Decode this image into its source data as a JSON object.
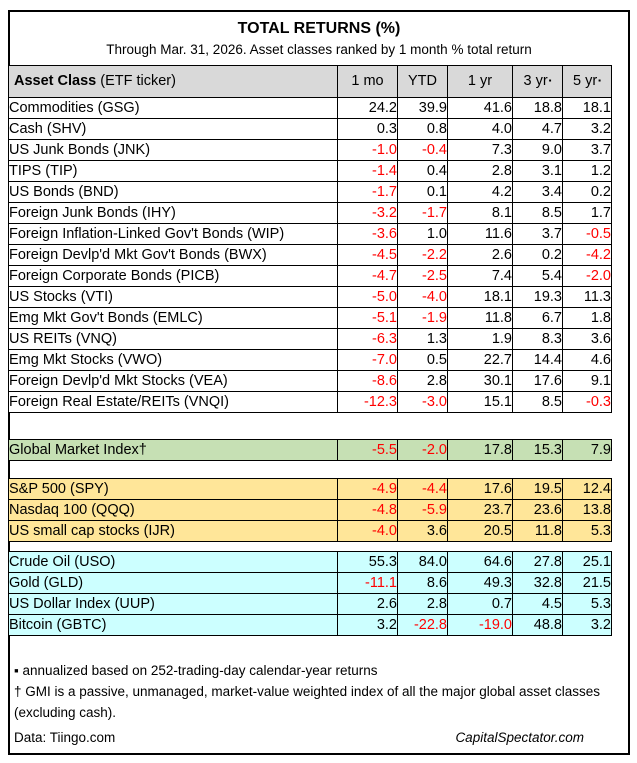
{
  "colors": {
    "header_bg": "#D9D9D9",
    "gmi_bg": "#C6E0B4",
    "benchmark_bg": "#FFE699",
    "alternatives_bg": "#CCFFFF",
    "negative": "#FF0000",
    "border": "#000000"
  },
  "chart_data": {
    "type": "table",
    "title": "TOTAL RETURNS (%)",
    "subtitle": "Through Mar. 31, 2026. Asset classes ranked by 1 month % total return",
    "header": {
      "asset_col_bold": "Asset Class",
      "asset_col_regular": " (ETF ticker)",
      "value_cols": [
        {
          "label": "1 mo",
          "marker": ""
        },
        {
          "label": "YTD",
          "marker": ""
        },
        {
          "label": "1 yr",
          "marker": ""
        },
        {
          "label": "3 yr",
          "marker": "▪"
        },
        {
          "label": "5 yr",
          "marker": "▪"
        }
      ]
    },
    "sections": [
      {
        "id": "asset-classes",
        "bg": "#FFFFFF",
        "rows": [
          {
            "label": "Commodities (GSG)",
            "values": [
              "24.2",
              "39.9",
              "41.6",
              "18.8",
              "18.1"
            ]
          },
          {
            "label": "Cash (SHV)",
            "values": [
              "0.3",
              "0.8",
              "4.0",
              "4.7",
              "3.2"
            ]
          },
          {
            "label": "US Junk Bonds (JNK)",
            "values": [
              "-1.0",
              "-0.4",
              "7.3",
              "9.0",
              "3.7"
            ]
          },
          {
            "label": "TIPS (TIP)",
            "values": [
              "-1.4",
              "0.4",
              "2.8",
              "3.1",
              "1.2"
            ]
          },
          {
            "label": "US Bonds (BND)",
            "values": [
              "-1.7",
              "0.1",
              "4.2",
              "3.4",
              "0.2"
            ]
          },
          {
            "label": "Foreign Junk Bonds (IHY)",
            "values": [
              "-3.2",
              "-1.7",
              "8.1",
              "8.5",
              "1.7"
            ]
          },
          {
            "label": "Foreign Inflation-Linked Gov't Bonds (WIP)",
            "values": [
              "-3.6",
              "1.0",
              "11.6",
              "3.7",
              "-0.5"
            ]
          },
          {
            "label": "Foreign Devlp'd Mkt Gov't Bonds (BWX)",
            "values": [
              "-4.5",
              "-2.2",
              "2.6",
              "0.2",
              "-4.2"
            ]
          },
          {
            "label": "Foreign Corporate Bonds (PICB)",
            "values": [
              "-4.7",
              "-2.5",
              "7.4",
              "5.4",
              "-2.0"
            ]
          },
          {
            "label": "US Stocks (VTI)",
            "values": [
              "-5.0",
              "-4.0",
              "18.1",
              "19.3",
              "11.3"
            ]
          },
          {
            "label": "Emg Mkt Gov't Bonds (EMLC)",
            "values": [
              "-5.1",
              "-1.9",
              "11.8",
              "6.7",
              "1.8"
            ]
          },
          {
            "label": "US REITs (VNQ)",
            "values": [
              "-6.3",
              "1.3",
              "1.9",
              "8.3",
              "3.6"
            ]
          },
          {
            "label": "Emg Mkt Stocks (VWO)",
            "values": [
              "-7.0",
              "0.5",
              "22.7",
              "14.4",
              "4.6"
            ]
          },
          {
            "label": "Foreign Devlp'd Mkt Stocks (VEA)",
            "values": [
              "-8.6",
              "2.8",
              "30.1",
              "17.6",
              "9.1"
            ]
          },
          {
            "label": "Foreign Real Estate/REITs (VNQI)",
            "values": [
              "-12.3",
              "-3.0",
              "15.1",
              "8.5",
              "-0.3"
            ]
          }
        ]
      },
      {
        "id": "global-market-index",
        "bg": "#C6E0B4",
        "rows": [
          {
            "label": "Global Market Index†",
            "values": [
              "-5.5",
              "-2.0",
              "17.8",
              "15.3",
              "7.9"
            ]
          }
        ]
      },
      {
        "id": "us-benchmarks",
        "bg": "#FFE699",
        "rows": [
          {
            "label": "S&P 500 (SPY)",
            "values": [
              "-4.9",
              "-4.4",
              "17.6",
              "19.5",
              "12.4"
            ]
          },
          {
            "label": "Nasdaq 100 (QQQ)",
            "values": [
              "-4.8",
              "-5.9",
              "23.7",
              "23.6",
              "13.8"
            ]
          },
          {
            "label": "US small cap stocks (IJR)",
            "values": [
              "-4.0",
              "3.6",
              "20.5",
              "11.8",
              "5.3"
            ]
          }
        ]
      },
      {
        "id": "alternatives",
        "bg": "#CCFFFF",
        "rows": [
          {
            "label": "Crude Oil (USO)",
            "values": [
              "55.3",
              "84.0",
              "64.6",
              "27.8",
              "25.1"
            ]
          },
          {
            "label": "Gold (GLD)",
            "values": [
              "-11.1",
              "8.6",
              "49.3",
              "32.8",
              "21.5"
            ]
          },
          {
            "label": "US Dollar Index (UUP)",
            "values": [
              "2.6",
              "2.8",
              "0.7",
              "4.5",
              "5.3"
            ]
          },
          {
            "label": "Bitcoin (GBTC)",
            "values": [
              "3.2",
              "-22.8",
              "-19.0",
              "48.8",
              "3.2"
            ]
          }
        ]
      }
    ]
  },
  "footnotes": [
    "▪ annualized based on 252-trading-day calendar-year returns",
    "† GMI is a passive, unmanaged, market-value weighted index of all the major global asset classes (excluding cash)."
  ],
  "footer": {
    "left": "Data: Tiingo.com",
    "right": "CapitalSpectator.com"
  }
}
